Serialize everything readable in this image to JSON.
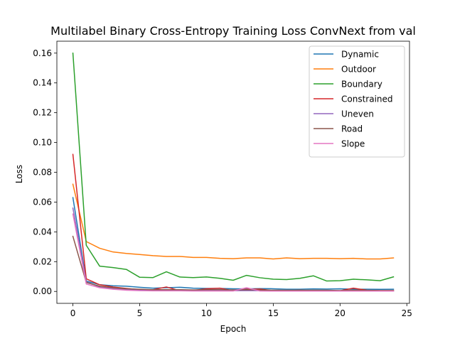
{
  "chart_data": {
    "type": "line",
    "title": "Multilabel Binary Cross-Entropy Training Loss ConvNext from val",
    "xlabel": "Epoch",
    "ylabel": "Loss",
    "xlim": [
      -1.2,
      25.2
    ],
    "ylim": [
      -0.008,
      0.168
    ],
    "xticks": [
      0,
      5,
      10,
      15,
      20,
      25
    ],
    "xtick_labels": [
      "0",
      "5",
      "10",
      "15",
      "20",
      "25"
    ],
    "yticks": [
      0.0,
      0.02,
      0.04,
      0.06,
      0.08,
      0.1,
      0.12,
      0.14,
      0.16
    ],
    "ytick_labels": [
      "0.00",
      "0.02",
      "0.04",
      "0.06",
      "0.08",
      "0.10",
      "0.12",
      "0.14",
      "0.16"
    ],
    "grid": false,
    "legend_position": "top-right",
    "x": [
      0,
      1,
      2,
      3,
      4,
      5,
      6,
      7,
      8,
      9,
      10,
      11,
      12,
      13,
      14,
      15,
      16,
      17,
      18,
      19,
      20,
      21,
      22,
      23,
      24
    ],
    "series": [
      {
        "name": "Dynamic",
        "color": "#1f77b4",
        "values": [
          0.063,
          0.007,
          0.0045,
          0.0038,
          0.0035,
          0.0028,
          0.0022,
          0.0025,
          0.0028,
          0.0022,
          0.002,
          0.002,
          0.0018,
          0.0017,
          0.0019,
          0.0018,
          0.0015,
          0.0015,
          0.0017,
          0.0016,
          0.0018,
          0.0015,
          0.0015,
          0.0014,
          0.0015
        ]
      },
      {
        "name": "Outdoor",
        "color": "#ff7f0e",
        "values": [
          0.072,
          0.0335,
          0.029,
          0.0265,
          0.0255,
          0.0248,
          0.024,
          0.0235,
          0.0235,
          0.0228,
          0.0228,
          0.0222,
          0.022,
          0.0225,
          0.0225,
          0.0218,
          0.0225,
          0.022,
          0.0222,
          0.0222,
          0.022,
          0.0222,
          0.0218,
          0.0218,
          0.0225
        ]
      },
      {
        "name": "Boundary",
        "color": "#2ca02c",
        "values": [
          0.16,
          0.031,
          0.017,
          0.016,
          0.0148,
          0.0095,
          0.0093,
          0.0132,
          0.0097,
          0.0093,
          0.0097,
          0.0088,
          0.0075,
          0.0108,
          0.0092,
          0.0082,
          0.008,
          0.0088,
          0.0105,
          0.007,
          0.0072,
          0.0082,
          0.0078,
          0.0072,
          0.0098
        ]
      },
      {
        "name": "Constrained",
        "color": "#d62728",
        "values": [
          0.092,
          0.0085,
          0.0045,
          0.003,
          0.002,
          0.0012,
          0.0012,
          0.003,
          0.0005,
          0.0007,
          0.0018,
          0.0022,
          0.0005,
          0.0015,
          0.0016,
          0.0005,
          0.0005,
          0.0008,
          0.0005,
          0.0005,
          0.0005,
          0.0022,
          0.0008,
          0.0006,
          0.0006
        ]
      },
      {
        "name": "Uneven",
        "color": "#9467bd",
        "values": [
          0.056,
          0.0065,
          0.003,
          0.002,
          0.0012,
          0.0008,
          0.0006,
          0.0006,
          0.0005,
          0.0005,
          0.0005,
          0.0005,
          0.0005,
          0.0006,
          0.0005,
          0.0004,
          0.0004,
          0.0004,
          0.0005,
          0.0004,
          0.0004,
          0.0004,
          0.0004,
          0.0004,
          0.0004
        ]
      },
      {
        "name": "Road",
        "color": "#8c564b",
        "values": [
          0.037,
          0.006,
          0.0035,
          0.0025,
          0.0018,
          0.0015,
          0.0012,
          0.0012,
          0.0012,
          0.001,
          0.0012,
          0.0012,
          0.001,
          0.0012,
          0.001,
          0.0008,
          0.0008,
          0.0008,
          0.0008,
          0.0008,
          0.0006,
          0.0008,
          0.0007,
          0.0006,
          0.0006
        ]
      },
      {
        "name": "Slope",
        "color": "#e377c2",
        "values": [
          0.052,
          0.005,
          0.0025,
          0.0015,
          0.0008,
          0.0005,
          0.0004,
          0.0004,
          0.0004,
          0.0003,
          0.0003,
          0.0003,
          0.0003,
          0.0025,
          0.0003,
          0.0002,
          0.0002,
          0.0002,
          0.0002,
          0.0002,
          0.0002,
          0.0002,
          0.0002,
          0.0002,
          0.0002
        ]
      }
    ]
  }
}
